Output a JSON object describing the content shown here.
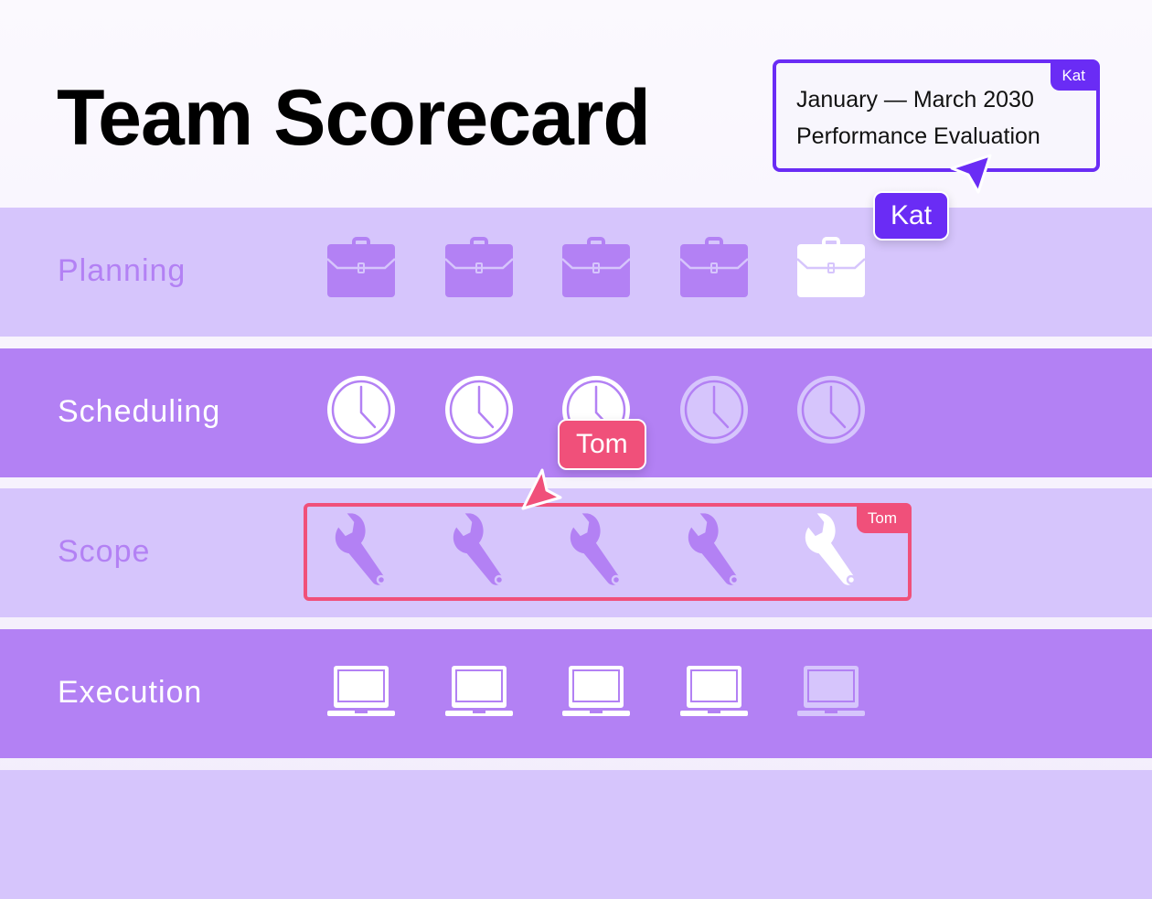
{
  "title": "Team Scorecard",
  "evaluation": {
    "line1": "January — March 2030",
    "line2": "Performance Evaluation",
    "editor_tag": "Kat"
  },
  "collaborators": [
    {
      "name": "Kat",
      "color": "#6a2cf5"
    },
    {
      "name": "Tom",
      "color": "#f0507a"
    }
  ],
  "selection": {
    "editor_tag": "Tom",
    "row": "Scope"
  },
  "rows": [
    {
      "label": "Planning",
      "icon": "briefcase-icon",
      "score": 4,
      "max": 5,
      "style": "light"
    },
    {
      "label": "Scheduling",
      "icon": "clock-icon",
      "score": 3,
      "max": 5,
      "style": "dark"
    },
    {
      "label": "Scope",
      "icon": "wrench-icon",
      "score": 4,
      "max": 5,
      "style": "light"
    },
    {
      "label": "Execution",
      "icon": "laptop-icon",
      "score": 4,
      "max": 5,
      "style": "dark"
    }
  ],
  "colors": {
    "light_row": "#d6c5fc",
    "dark_row": "#b381f4",
    "white": "#ffffff"
  }
}
